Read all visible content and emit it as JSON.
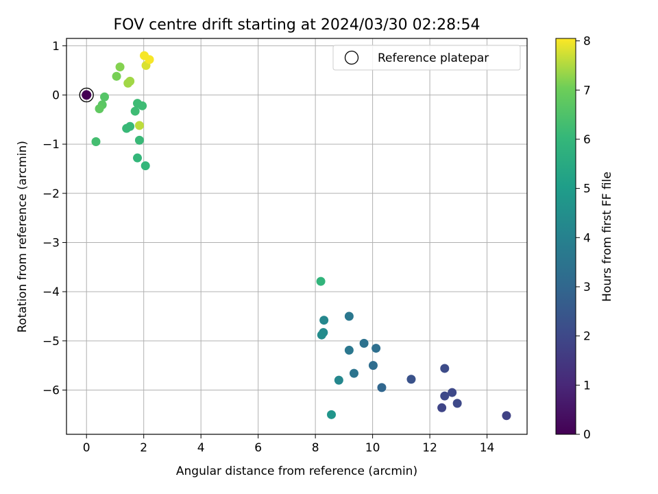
{
  "chart_data": {
    "type": "scatter",
    "title": "FOV centre drift starting at 2024/03/30 02:28:54",
    "xlabel": "Angular distance from reference (arcmin)",
    "ylabel": "Rotation from reference (arcmin)",
    "colorbar_label": "Hours from first FF file",
    "xlim": [
      -0.7,
      15.4
    ],
    "ylim": [
      -6.9,
      1.15
    ],
    "x_ticks": [
      0,
      2,
      4,
      6,
      8,
      10,
      12,
      14
    ],
    "y_ticks": [
      1,
      0,
      -1,
      -2,
      -3,
      -4,
      -5,
      -6
    ],
    "x_tick_labels": [
      "0",
      "2",
      "4",
      "6",
      "8",
      "10",
      "12",
      "14"
    ],
    "y_tick_labels": [
      "1",
      "0",
      "−1",
      "−2",
      "−3",
      "−4",
      "−5",
      "−6"
    ],
    "colorbar_range": [
      0,
      8.05
    ],
    "colorbar_ticks": [
      0,
      1,
      2,
      3,
      4,
      5,
      6,
      7,
      8
    ],
    "colorbar_tick_labels": [
      "0",
      "1",
      "2",
      "3",
      "4",
      "5",
      "6",
      "7",
      "8"
    ],
    "colormap": "viridis",
    "grid": true,
    "legend": {
      "position": "top-right",
      "entries": [
        {
          "label": "Reference platepar",
          "marker": "hollow-circle"
        }
      ]
    },
    "reference_point": {
      "x": 0,
      "y": 0,
      "hours": 0
    },
    "points": [
      {
        "x": 14.68,
        "y": -6.52,
        "hours": 1.8
      },
      {
        "x": 12.42,
        "y": -6.36,
        "hours": 1.9
      },
      {
        "x": 12.52,
        "y": -6.12,
        "hours": 2.0
      },
      {
        "x": 12.78,
        "y": -6.05,
        "hours": 2.0
      },
      {
        "x": 12.96,
        "y": -6.27,
        "hours": 2.0
      },
      {
        "x": 12.52,
        "y": -5.56,
        "hours": 2.1
      },
      {
        "x": 11.35,
        "y": -5.78,
        "hours": 2.3
      },
      {
        "x": 10.32,
        "y": -5.95,
        "hours": 3.0
      },
      {
        "x": 10.02,
        "y": -5.5,
        "hours": 3.2
      },
      {
        "x": 10.12,
        "y": -5.15,
        "hours": 3.3
      },
      {
        "x": 9.7,
        "y": -5.05,
        "hours": 3.4
      },
      {
        "x": 9.35,
        "y": -5.66,
        "hours": 3.5
      },
      {
        "x": 9.18,
        "y": -5.19,
        "hours": 3.6
      },
      {
        "x": 9.18,
        "y": -4.5,
        "hours": 3.6
      },
      {
        "x": 8.82,
        "y": -5.8,
        "hours": 4.2
      },
      {
        "x": 8.3,
        "y": -4.58,
        "hours": 4.2
      },
      {
        "x": 8.28,
        "y": -4.83,
        "hours": 4.3
      },
      {
        "x": 8.22,
        "y": -4.88,
        "hours": 4.4
      },
      {
        "x": 8.56,
        "y": -6.5,
        "hours": 4.7
      },
      {
        "x": 8.19,
        "y": -3.79,
        "hours": 5.9
      },
      {
        "x": 0.33,
        "y": -0.95,
        "hours": 6.3
      },
      {
        "x": 1.4,
        "y": -0.68,
        "hours": 6.1
      },
      {
        "x": 1.52,
        "y": -0.64,
        "hours": 6.1
      },
      {
        "x": 1.78,
        "y": -1.28,
        "hours": 6.0
      },
      {
        "x": 2.06,
        "y": -1.44,
        "hours": 6.0
      },
      {
        "x": 1.85,
        "y": -0.92,
        "hours": 6.1
      },
      {
        "x": 1.7,
        "y": -0.33,
        "hours": 6.2
      },
      {
        "x": 1.78,
        "y": -0.17,
        "hours": 6.2
      },
      {
        "x": 1.95,
        "y": -0.22,
        "hours": 6.2
      },
      {
        "x": 0.63,
        "y": -0.04,
        "hours": 6.6
      },
      {
        "x": 0.55,
        "y": -0.2,
        "hours": 6.7
      },
      {
        "x": 0.45,
        "y": -0.28,
        "hours": 6.8
      },
      {
        "x": 1.85,
        "y": -0.62,
        "hours": 7.6
      },
      {
        "x": 1.05,
        "y": 0.38,
        "hours": 7.1
      },
      {
        "x": 1.17,
        "y": 0.57,
        "hours": 7.2
      },
      {
        "x": 1.45,
        "y": 0.24,
        "hours": 7.4
      },
      {
        "x": 1.52,
        "y": 0.28,
        "hours": 7.4
      },
      {
        "x": 2.08,
        "y": 0.6,
        "hours": 7.8
      },
      {
        "x": 2.2,
        "y": 0.72,
        "hours": 8.0
      },
      {
        "x": 2.02,
        "y": 0.8,
        "hours": 8.0
      }
    ]
  }
}
